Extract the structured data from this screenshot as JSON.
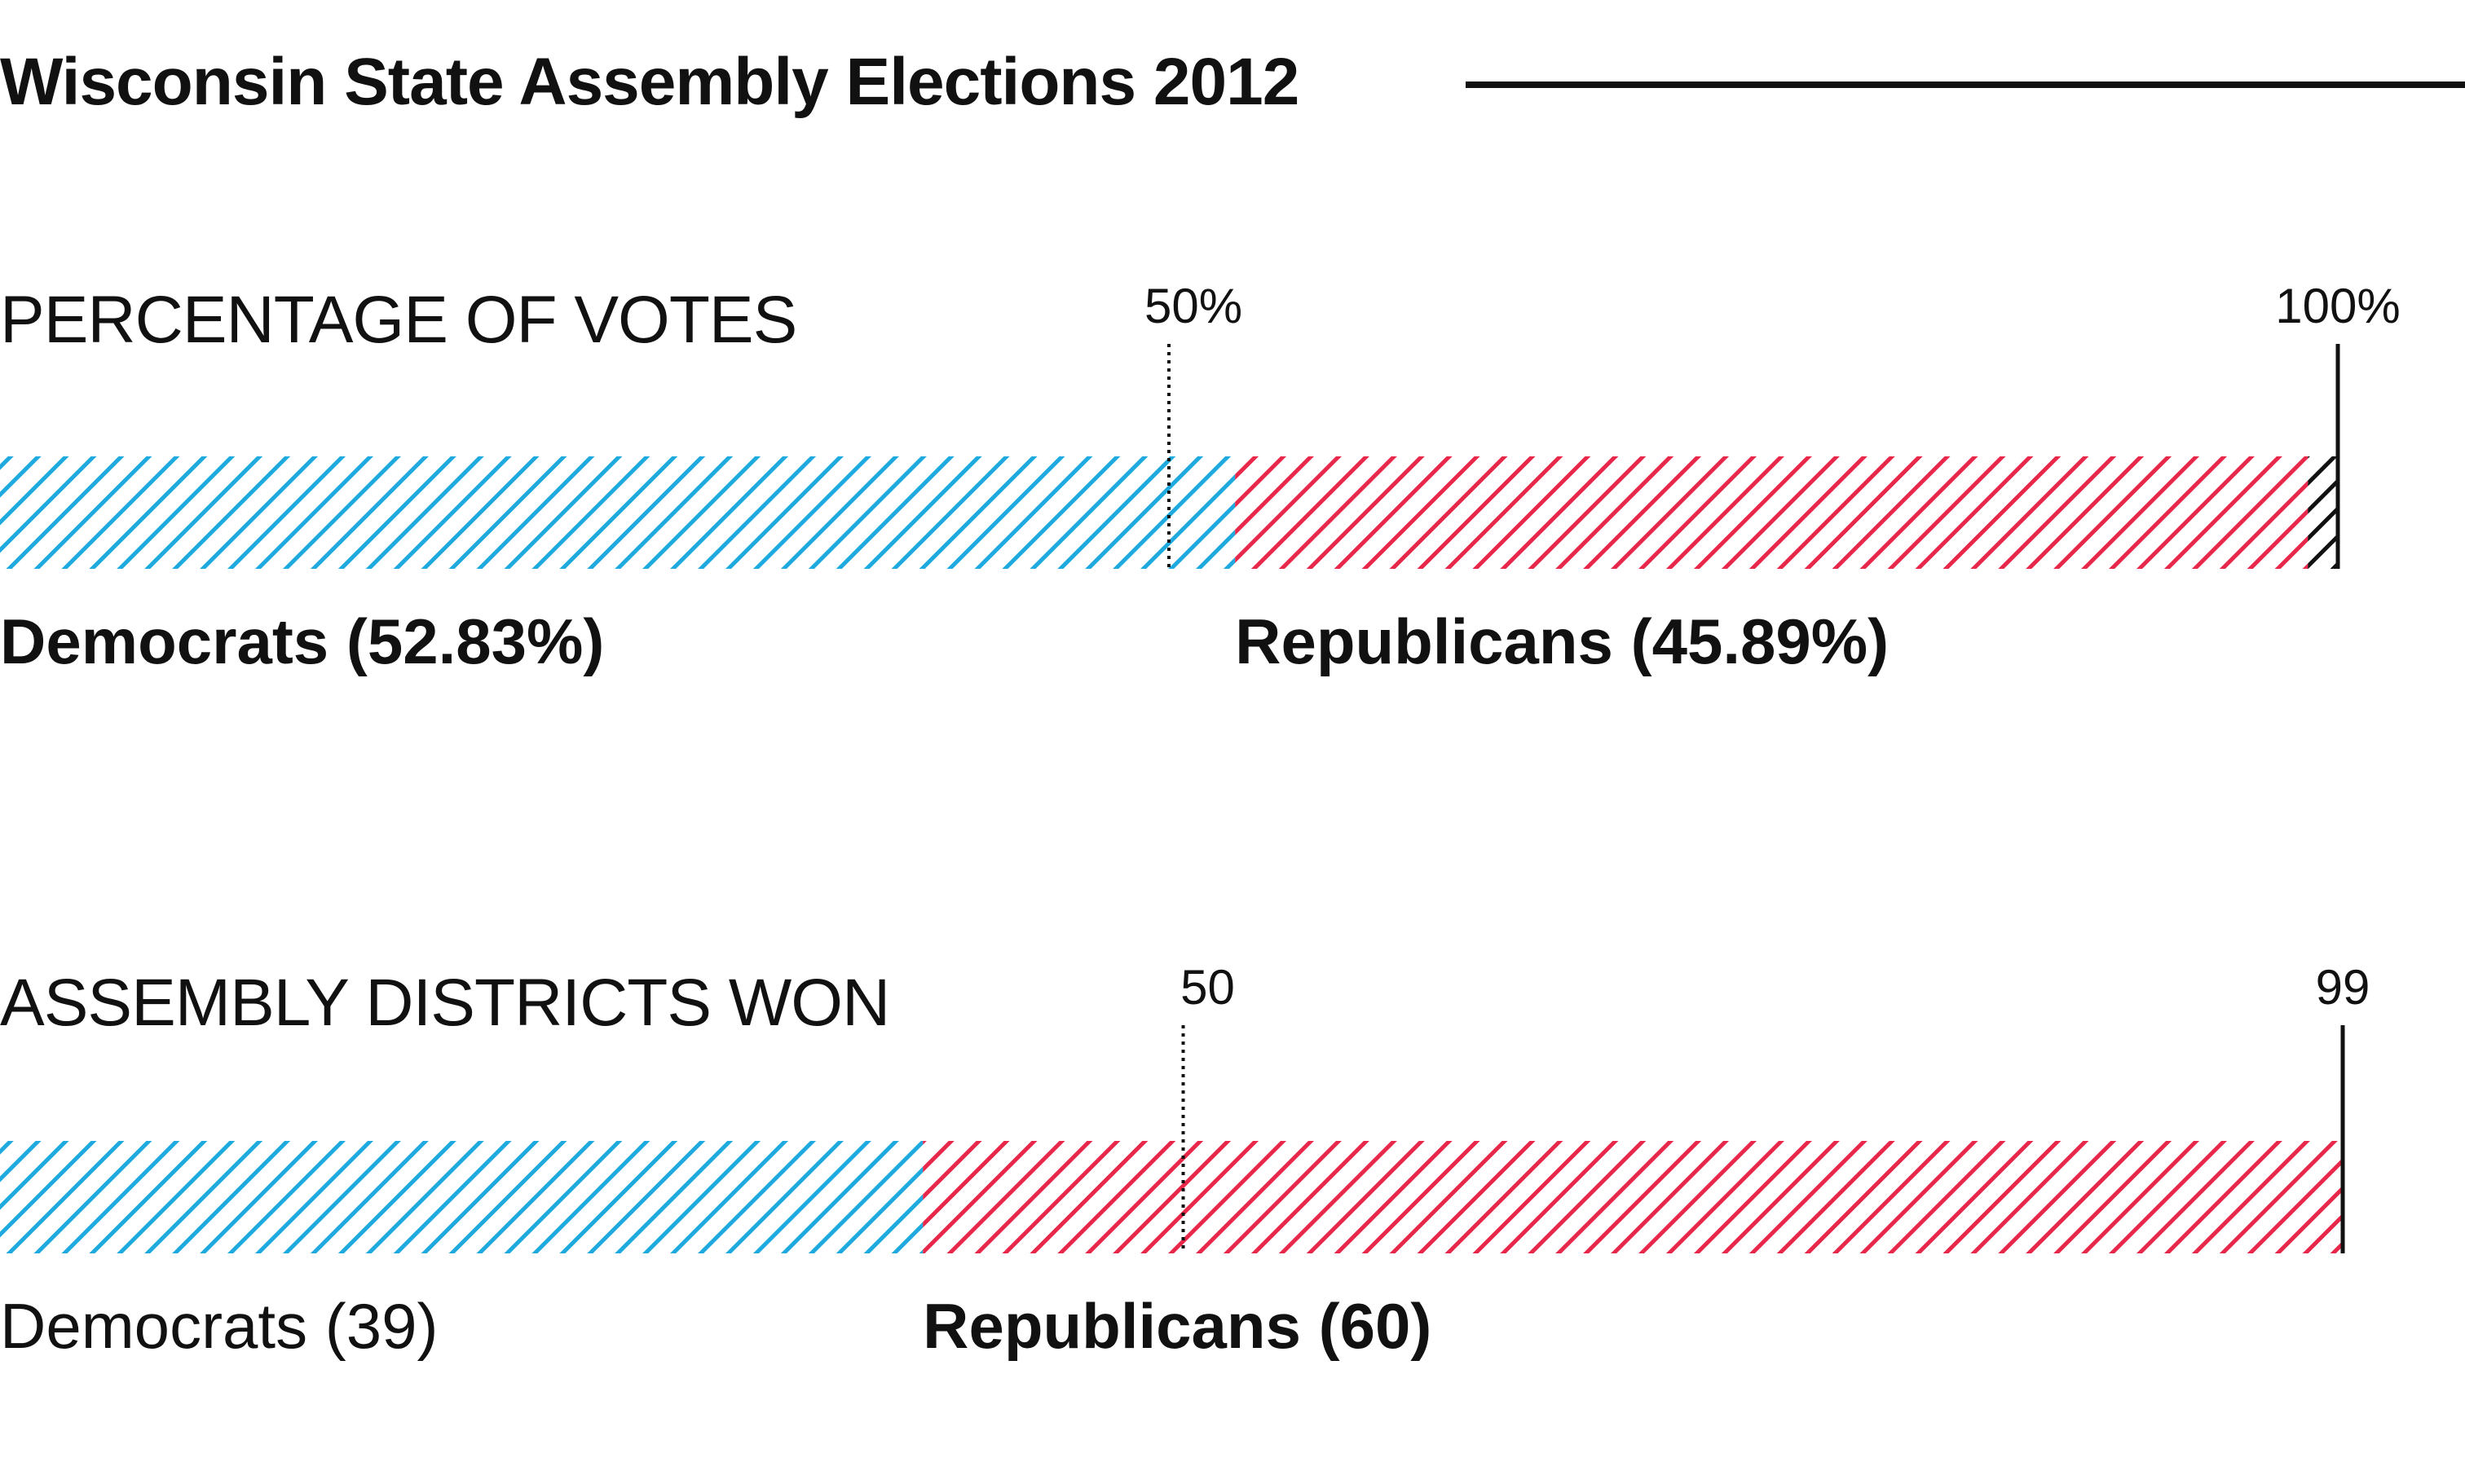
{
  "title": "Wisconsin State Assembly Elections 2012",
  "colors": {
    "democrats": "#1eaadf",
    "republicans": "#e8284a",
    "other": "#111111",
    "rule": "#111111"
  },
  "chart_data": [
    {
      "type": "bar",
      "orientation": "horizontal-stacked",
      "title": "PERCENTAGE OF VOTES",
      "xlim": [
        0,
        100
      ],
      "reference_ticks": [
        {
          "value": 50,
          "label": "50%",
          "style": "dotted"
        },
        {
          "value": 100,
          "label": "100%",
          "style": "solid"
        }
      ],
      "series": [
        {
          "name": "Democrats",
          "value": 52.83,
          "label": "Democrats (52.83%)",
          "color": "#1eaadf",
          "pattern": "hatch"
        },
        {
          "name": "Republicans",
          "value": 45.89,
          "label": "Republicans (45.89%)",
          "color": "#e8284a",
          "pattern": "hatch"
        },
        {
          "name": "",
          "value": 1.28,
          "label": "",
          "color": "#111111",
          "pattern": "hatch"
        }
      ]
    },
    {
      "type": "bar",
      "orientation": "horizontal-stacked",
      "title": "ASSEMBLY DISTRICTS WON",
      "xlim": [
        0,
        99
      ],
      "reference_ticks": [
        {
          "value": 50,
          "label": "50",
          "style": "dotted"
        },
        {
          "value": 99,
          "label": "99",
          "style": "solid"
        }
      ],
      "series": [
        {
          "name": "Democrats",
          "value": 39,
          "label": "Democrats (39)",
          "color": "#1eaadf",
          "pattern": "hatch"
        },
        {
          "name": "Republicans",
          "value": 60,
          "label": "Republicans (60)",
          "color": "#e8284a",
          "pattern": "hatch"
        }
      ]
    }
  ]
}
